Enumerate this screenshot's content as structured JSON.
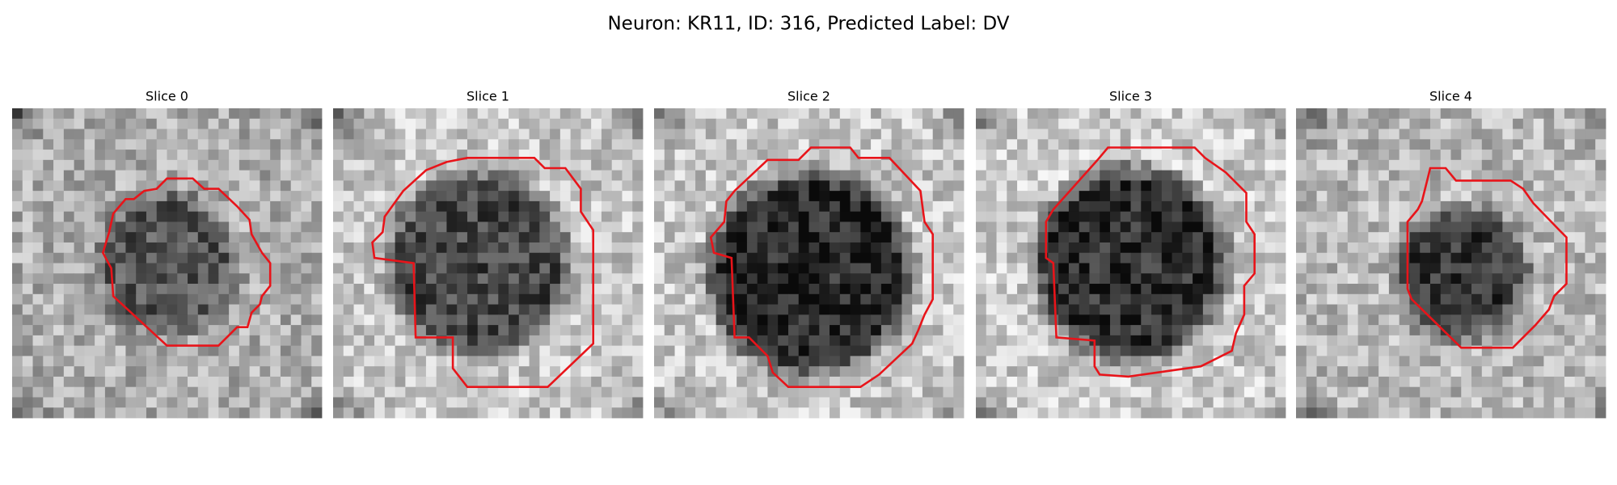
{
  "title": "Neuron: KR11, ID: 316, Predicted Label: DV",
  "panels": [
    {
      "title": "Slice 0"
    },
    {
      "title": "Slice 1"
    },
    {
      "title": "Slice 2"
    },
    {
      "title": "Slice 3"
    },
    {
      "title": "Slice 4"
    }
  ]
}
